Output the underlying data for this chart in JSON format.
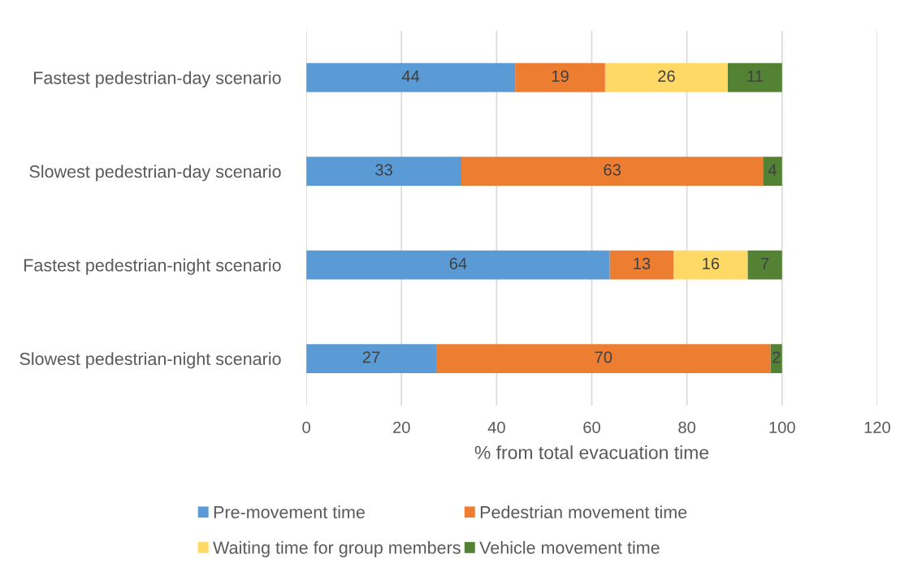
{
  "chart_data": {
    "type": "bar",
    "orientation": "horizontal",
    "stacked": true,
    "categories": [
      "Fastest pedestrian-day scenario",
      "Slowest pedestrian-day scenario",
      "Fastest pedestrian-night scenario",
      "Slowest pedestrian-night scenario"
    ],
    "series": [
      {
        "name": "Pre-movement time",
        "color": "#5b9bd5",
        "values": [
          43.9,
          32.6,
          63.8,
          27.3
        ],
        "value_labels": [
          "44",
          "33",
          "64",
          "27"
        ]
      },
      {
        "name": "Pedestrian movement time",
        "color": "#ed7d31",
        "values": [
          18.9,
          63.4,
          13.4,
          70.3
        ],
        "value_labels": [
          "19",
          "63",
          "13",
          "70"
        ]
      },
      {
        "name": "Waiting time for group members",
        "color": "#ffd966",
        "values": [
          25.8,
          null,
          15.6,
          null
        ],
        "value_labels": [
          "26",
          null,
          "16",
          null
        ]
      },
      {
        "name": "Vehicle movement time",
        "color": "#548235",
        "values": [
          11.4,
          4.0,
          7.2,
          2.4
        ],
        "value_labels": [
          "11",
          "4",
          "7",
          "2"
        ]
      }
    ],
    "xlabel": "% from total evacuation time",
    "xlim": [
      0,
      120
    ],
    "xticks": [
      0,
      20,
      40,
      60,
      80,
      100,
      120
    ],
    "grid": "x",
    "legend": "bottom"
  }
}
